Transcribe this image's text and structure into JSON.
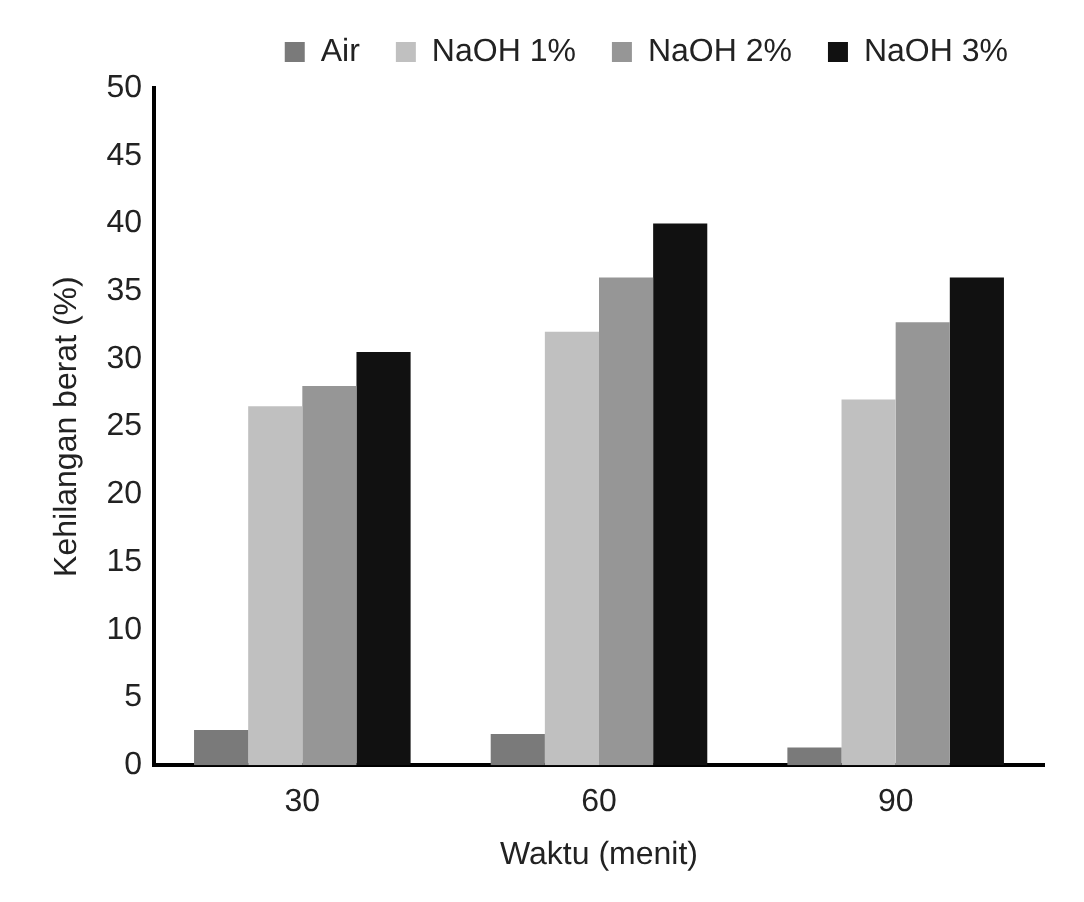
{
  "chart_data": {
    "type": "bar",
    "xlabel": "Waktu (menit)",
    "ylabel": "Kehilangan berat (%)",
    "categories": [
      "30",
      "60",
      "90"
    ],
    "series": [
      {
        "name": "Air",
        "color": "#7a7a7a",
        "values": [
          2.6,
          2.3,
          1.3
        ]
      },
      {
        "name": "NaOH 1%",
        "color": "#c0c0c0",
        "values": [
          26.5,
          32,
          27
        ]
      },
      {
        "name": "NaOH 2%",
        "color": "#969696",
        "values": [
          28,
          36,
          32.7
        ]
      },
      {
        "name": "NaOH 3%",
        "color": "#111111",
        "values": [
          30.5,
          40,
          36
        ]
      }
    ],
    "ylim": [
      0,
      50
    ],
    "yticks": [
      0,
      5,
      10,
      15,
      20,
      25,
      30,
      35,
      40,
      45,
      50
    ],
    "grid": false,
    "legend": "top"
  }
}
